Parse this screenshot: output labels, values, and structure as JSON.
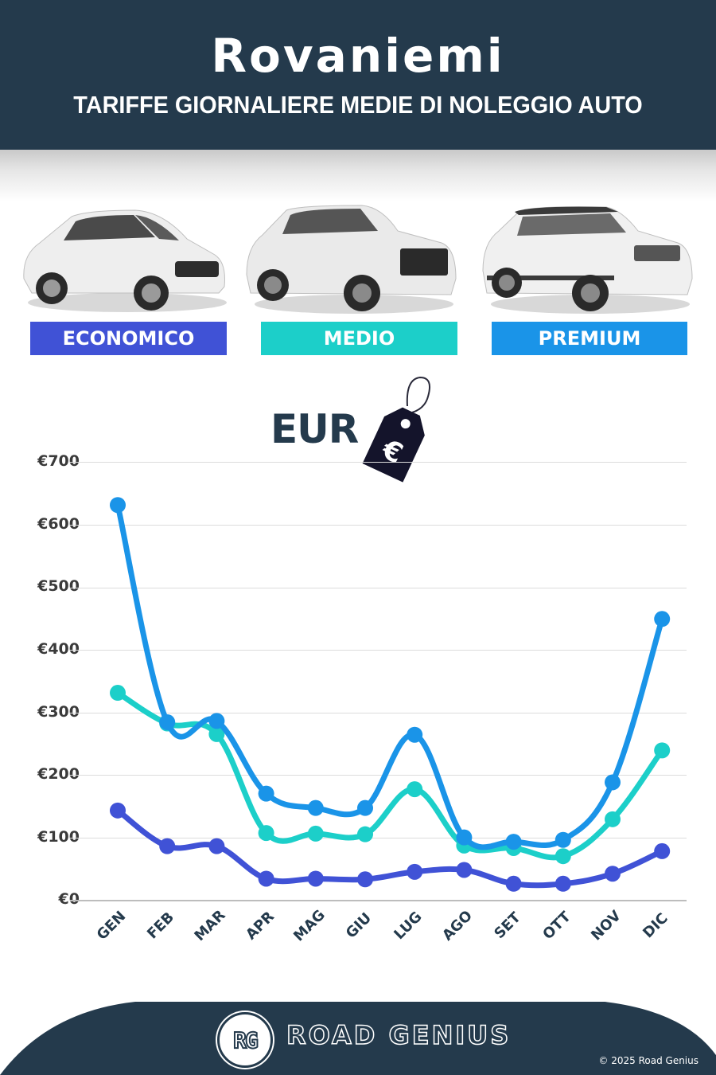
{
  "header": {
    "title": "Rovaniemi",
    "subtitle": "TARIFFE GIORNALIERE MEDIE DI NOLEGGIO AUTO"
  },
  "categories": [
    {
      "label": "ECONOMICO",
      "color": "#4052d6",
      "icon": "hatchback-car-image"
    },
    {
      "label": "MEDIO",
      "color": "#1ccfc9",
      "icon": "suv-car-image"
    },
    {
      "label": "PREMIUM",
      "color": "#1a94e8",
      "icon": "luxury-suv-car-image"
    }
  ],
  "currency": {
    "label": "EUR",
    "icon": "euro-price-tag-icon",
    "tag_symbol": "€"
  },
  "colors": {
    "header_bg": "#243a4c",
    "economico": "#4052d6",
    "medio": "#1ccfc9",
    "premium": "#1a94e8",
    "axis_text": "#3a3a3a",
    "month_text": "#243a4c"
  },
  "chart_data": {
    "type": "line",
    "title": "Rovaniemi - Tariffe giornaliere medie di noleggio auto",
    "xlabel": "",
    "ylabel": "EUR",
    "categories": [
      "GEN",
      "FEB",
      "MAR",
      "APR",
      "MAG",
      "GIU",
      "LUG",
      "AGO",
      "SET",
      "OTT",
      "NOV",
      "DIC"
    ],
    "y_ticks": [
      "€0",
      "€100",
      "€200",
      "€300",
      "€400",
      "€500",
      "€600",
      "€700"
    ],
    "ylim": [
      0,
      700
    ],
    "grid": true,
    "legend_position": "top (category badges)",
    "series": [
      {
        "name": "ECONOMICO",
        "color": "#4052d6",
        "values": [
          144,
          87,
          87,
          35,
          35,
          34,
          46,
          49,
          27,
          27,
          43,
          79
        ]
      },
      {
        "name": "MEDIO",
        "color": "#1ccfc9",
        "values": [
          332,
          283,
          266,
          108,
          107,
          106,
          178,
          88,
          84,
          71,
          130,
          240
        ]
      },
      {
        "name": "PREMIUM",
        "color": "#1a94e8",
        "values": [
          632,
          285,
          287,
          171,
          148,
          148,
          265,
          101,
          94,
          97,
          189,
          450
        ]
      }
    ]
  },
  "footer": {
    "logo_initials": "RG",
    "brand": "ROAD GENIUS",
    "copyright": "© 2025 Road Genius"
  }
}
